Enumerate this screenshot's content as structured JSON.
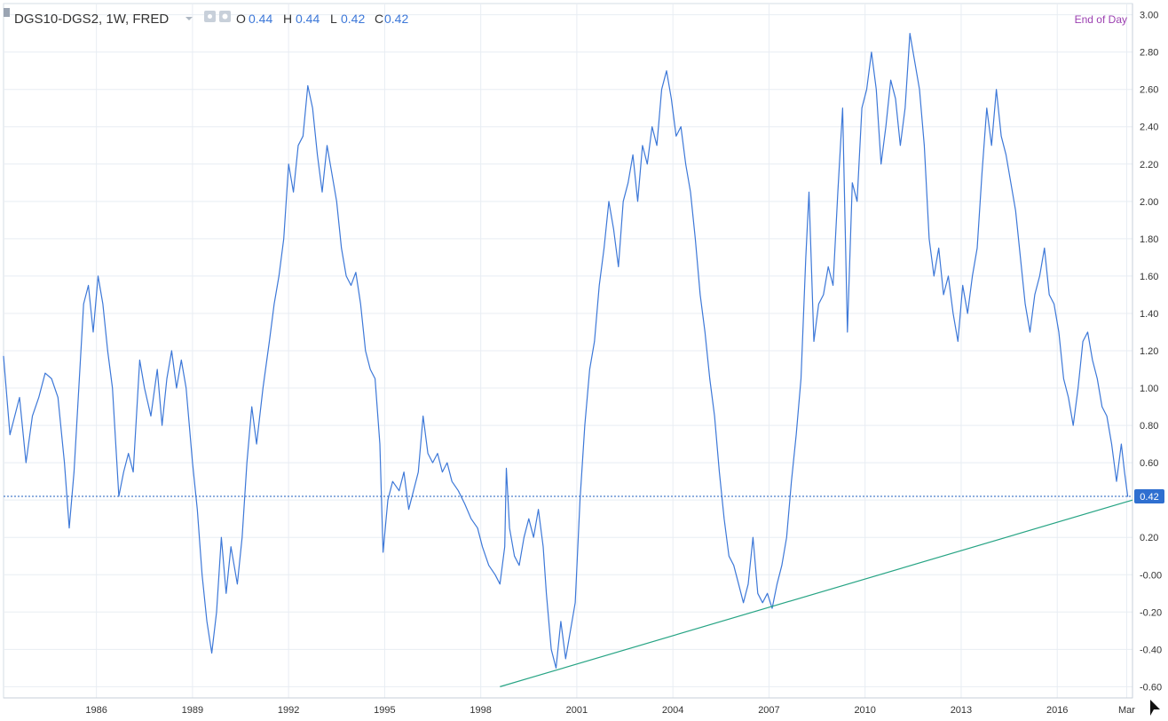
{
  "header": {
    "symbol_label": "DGS10-DGS2, 1W, FRED",
    "open_label": "O",
    "open_value": "0.44",
    "high_label": "H",
    "high_value": "0.44",
    "low_label": "L",
    "low_value": "0.42",
    "close_label": "C",
    "close_value": "0.42",
    "session_label": "End of Day"
  },
  "icons": {
    "collapse": "collapse-icon",
    "dropdown": "chevron-down-icon",
    "visibility": "eye-icon",
    "settings": "gear-icon",
    "cursor": "cursor-icon"
  },
  "colors": {
    "series": "#3d78d8",
    "trendline": "#27a484",
    "price_line": "#1f5fbf",
    "last_price_badge": "#2f6fd0",
    "session_text": "#9b3fb0",
    "grid": "#e8edf3",
    "axis_text": "#333333"
  },
  "chart_data": {
    "type": "line",
    "title": "DGS10-DGS2, 1W, FRED",
    "x_tick_labels": [
      "1986",
      "1989",
      "1992",
      "1995",
      "1998",
      "2001",
      "2004",
      "2007",
      "2010",
      "2013",
      "2016",
      "Mar"
    ],
    "x_ticks": [
      1986,
      1989,
      1992,
      1995,
      1998,
      2001,
      2004,
      2007,
      2010,
      2013,
      2016,
      2018.17
    ],
    "xlim": [
      1983.1,
      2018.35
    ],
    "y_tick_labels": [
      "3.00",
      "2.80",
      "2.60",
      "2.40",
      "2.20",
      "2.00",
      "1.80",
      "1.60",
      "1.40",
      "1.20",
      "1.00",
      "0.80",
      "0.60",
      "0.40",
      "0.20",
      "-0.00",
      "-0.20",
      "-0.40",
      "-0.60"
    ],
    "y_ticks": [
      3.0,
      2.8,
      2.6,
      2.4,
      2.2,
      2.0,
      1.8,
      1.6,
      1.4,
      1.2,
      1.0,
      0.8,
      0.6,
      0.4,
      0.2,
      0.0,
      -0.2,
      -0.4,
      -0.6
    ],
    "ylim": [
      -0.66,
      3.06
    ],
    "grid": true,
    "legend": "none",
    "last_value_label": "0.42",
    "last_value": 0.42,
    "series": [
      {
        "points": [
          [
            1983.1,
            1.17
          ],
          [
            1983.3,
            0.75
          ],
          [
            1983.6,
            0.95
          ],
          [
            1983.8,
            0.6
          ],
          [
            1984.0,
            0.85
          ],
          [
            1984.2,
            0.95
          ],
          [
            1984.4,
            1.08
          ],
          [
            1984.6,
            1.05
          ],
          [
            1984.8,
            0.95
          ],
          [
            1985.0,
            0.6
          ],
          [
            1985.15,
            0.25
          ],
          [
            1985.3,
            0.55
          ],
          [
            1985.45,
            1.0
          ],
          [
            1985.6,
            1.45
          ],
          [
            1985.75,
            1.55
          ],
          [
            1985.9,
            1.3
          ],
          [
            1986.05,
            1.6
          ],
          [
            1986.2,
            1.45
          ],
          [
            1986.35,
            1.2
          ],
          [
            1986.5,
            1.0
          ],
          [
            1986.7,
            0.42
          ],
          [
            1986.85,
            0.55
          ],
          [
            1987.0,
            0.65
          ],
          [
            1987.15,
            0.55
          ],
          [
            1987.35,
            1.15
          ],
          [
            1987.5,
            1.0
          ],
          [
            1987.7,
            0.85
          ],
          [
            1987.9,
            1.1
          ],
          [
            1988.05,
            0.8
          ],
          [
            1988.2,
            1.05
          ],
          [
            1988.35,
            1.2
          ],
          [
            1988.5,
            1.0
          ],
          [
            1988.65,
            1.15
          ],
          [
            1988.8,
            1.0
          ],
          [
            1989.0,
            0.6
          ],
          [
            1989.15,
            0.35
          ],
          [
            1989.3,
            0.0
          ],
          [
            1989.45,
            -0.25
          ],
          [
            1989.6,
            -0.42
          ],
          [
            1989.75,
            -0.2
          ],
          [
            1989.9,
            0.2
          ],
          [
            1990.05,
            -0.1
          ],
          [
            1990.2,
            0.15
          ],
          [
            1990.4,
            -0.05
          ],
          [
            1990.55,
            0.2
          ],
          [
            1990.7,
            0.6
          ],
          [
            1990.85,
            0.9
          ],
          [
            1991.0,
            0.7
          ],
          [
            1991.2,
            1.0
          ],
          [
            1991.4,
            1.25
          ],
          [
            1991.55,
            1.45
          ],
          [
            1991.7,
            1.6
          ],
          [
            1991.85,
            1.8
          ],
          [
            1992.0,
            2.2
          ],
          [
            1992.15,
            2.05
          ],
          [
            1992.3,
            2.3
          ],
          [
            1992.45,
            2.35
          ],
          [
            1992.6,
            2.62
          ],
          [
            1992.75,
            2.5
          ],
          [
            1992.9,
            2.25
          ],
          [
            1993.05,
            2.05
          ],
          [
            1993.2,
            2.3
          ],
          [
            1993.35,
            2.15
          ],
          [
            1993.5,
            2.0
          ],
          [
            1993.65,
            1.75
          ],
          [
            1993.8,
            1.6
          ],
          [
            1993.95,
            1.55
          ],
          [
            1994.1,
            1.62
          ],
          [
            1994.25,
            1.45
          ],
          [
            1994.4,
            1.2
          ],
          [
            1994.55,
            1.1
          ],
          [
            1994.7,
            1.05
          ],
          [
            1994.85,
            0.7
          ],
          [
            1994.95,
            0.12
          ],
          [
            1995.1,
            0.4
          ],
          [
            1995.25,
            0.5
          ],
          [
            1995.45,
            0.45
          ],
          [
            1995.6,
            0.55
          ],
          [
            1995.75,
            0.35
          ],
          [
            1995.9,
            0.45
          ],
          [
            1996.05,
            0.55
          ],
          [
            1996.2,
            0.85
          ],
          [
            1996.35,
            0.65
          ],
          [
            1996.5,
            0.6
          ],
          [
            1996.65,
            0.65
          ],
          [
            1996.8,
            0.55
          ],
          [
            1996.95,
            0.6
          ],
          [
            1997.1,
            0.5
          ],
          [
            1997.3,
            0.45
          ],
          [
            1997.5,
            0.38
          ],
          [
            1997.7,
            0.3
          ],
          [
            1997.9,
            0.25
          ],
          [
            1998.05,
            0.15
          ],
          [
            1998.25,
            0.05
          ],
          [
            1998.45,
            0.0
          ],
          [
            1998.6,
            -0.05
          ],
          [
            1998.75,
            0.15
          ],
          [
            1998.8,
            0.57
          ],
          [
            1998.9,
            0.25
          ],
          [
            1999.05,
            0.1
          ],
          [
            1999.2,
            0.05
          ],
          [
            1999.35,
            0.2
          ],
          [
            1999.5,
            0.3
          ],
          [
            1999.65,
            0.2
          ],
          [
            1999.8,
            0.35
          ],
          [
            1999.95,
            0.15
          ],
          [
            2000.05,
            -0.1
          ],
          [
            2000.2,
            -0.4
          ],
          [
            2000.35,
            -0.5
          ],
          [
            2000.5,
            -0.25
          ],
          [
            2000.65,
            -0.45
          ],
          [
            2000.8,
            -0.3
          ],
          [
            2000.95,
            -0.15
          ],
          [
            2001.1,
            0.4
          ],
          [
            2001.25,
            0.8
          ],
          [
            2001.4,
            1.1
          ],
          [
            2001.55,
            1.25
          ],
          [
            2001.7,
            1.55
          ],
          [
            2001.85,
            1.75
          ],
          [
            2002.0,
            2.0
          ],
          [
            2002.15,
            1.85
          ],
          [
            2002.3,
            1.65
          ],
          [
            2002.45,
            2.0
          ],
          [
            2002.6,
            2.1
          ],
          [
            2002.75,
            2.25
          ],
          [
            2002.9,
            2.0
          ],
          [
            2003.05,
            2.3
          ],
          [
            2003.2,
            2.2
          ],
          [
            2003.35,
            2.4
          ],
          [
            2003.5,
            2.3
          ],
          [
            2003.65,
            2.6
          ],
          [
            2003.8,
            2.7
          ],
          [
            2003.95,
            2.55
          ],
          [
            2004.1,
            2.35
          ],
          [
            2004.25,
            2.4
          ],
          [
            2004.4,
            2.2
          ],
          [
            2004.55,
            2.05
          ],
          [
            2004.7,
            1.8
          ],
          [
            2004.85,
            1.5
          ],
          [
            2005.0,
            1.3
          ],
          [
            2005.15,
            1.05
          ],
          [
            2005.3,
            0.85
          ],
          [
            2005.45,
            0.55
          ],
          [
            2005.6,
            0.3
          ],
          [
            2005.75,
            0.1
          ],
          [
            2005.9,
            0.05
          ],
          [
            2006.05,
            -0.05
          ],
          [
            2006.2,
            -0.15
          ],
          [
            2006.35,
            -0.05
          ],
          [
            2006.5,
            0.2
          ],
          [
            2006.65,
            -0.1
          ],
          [
            2006.8,
            -0.15
          ],
          [
            2006.95,
            -0.1
          ],
          [
            2007.1,
            -0.18
          ],
          [
            2007.25,
            -0.05
          ],
          [
            2007.4,
            0.05
          ],
          [
            2007.55,
            0.2
          ],
          [
            2007.7,
            0.5
          ],
          [
            2007.85,
            0.75
          ],
          [
            2008.0,
            1.05
          ],
          [
            2008.15,
            1.7
          ],
          [
            2008.25,
            2.05
          ],
          [
            2008.4,
            1.25
          ],
          [
            2008.55,
            1.45
          ],
          [
            2008.7,
            1.5
          ],
          [
            2008.85,
            1.65
          ],
          [
            2009.0,
            1.55
          ],
          [
            2009.15,
            2.05
          ],
          [
            2009.3,
            2.5
          ],
          [
            2009.45,
            1.3
          ],
          [
            2009.6,
            2.1
          ],
          [
            2009.75,
            2.0
          ],
          [
            2009.9,
            2.5
          ],
          [
            2010.05,
            2.6
          ],
          [
            2010.2,
            2.8
          ],
          [
            2010.35,
            2.6
          ],
          [
            2010.5,
            2.2
          ],
          [
            2010.65,
            2.4
          ],
          [
            2010.8,
            2.65
          ],
          [
            2010.95,
            2.55
          ],
          [
            2011.1,
            2.3
          ],
          [
            2011.25,
            2.5
          ],
          [
            2011.4,
            2.9
          ],
          [
            2011.55,
            2.75
          ],
          [
            2011.7,
            2.6
          ],
          [
            2011.85,
            2.3
          ],
          [
            2012.0,
            1.8
          ],
          [
            2012.15,
            1.6
          ],
          [
            2012.3,
            1.75
          ],
          [
            2012.45,
            1.5
          ],
          [
            2012.6,
            1.6
          ],
          [
            2012.75,
            1.4
          ],
          [
            2012.9,
            1.25
          ],
          [
            2013.05,
            1.55
          ],
          [
            2013.2,
            1.4
          ],
          [
            2013.35,
            1.6
          ],
          [
            2013.5,
            1.75
          ],
          [
            2013.65,
            2.15
          ],
          [
            2013.8,
            2.5
          ],
          [
            2013.95,
            2.3
          ],
          [
            2014.1,
            2.6
          ],
          [
            2014.25,
            2.35
          ],
          [
            2014.4,
            2.25
          ],
          [
            2014.55,
            2.1
          ],
          [
            2014.7,
            1.95
          ],
          [
            2014.85,
            1.7
          ],
          [
            2015.0,
            1.45
          ],
          [
            2015.15,
            1.3
          ],
          [
            2015.3,
            1.5
          ],
          [
            2015.45,
            1.6
          ],
          [
            2015.6,
            1.75
          ],
          [
            2015.75,
            1.5
          ],
          [
            2015.9,
            1.45
          ],
          [
            2016.05,
            1.3
          ],
          [
            2016.2,
            1.05
          ],
          [
            2016.35,
            0.95
          ],
          [
            2016.5,
            0.8
          ],
          [
            2016.65,
            1.0
          ],
          [
            2016.8,
            1.25
          ],
          [
            2016.95,
            1.3
          ],
          [
            2017.1,
            1.15
          ],
          [
            2017.25,
            1.05
          ],
          [
            2017.4,
            0.9
          ],
          [
            2017.55,
            0.85
          ],
          [
            2017.7,
            0.7
          ],
          [
            2017.85,
            0.5
          ],
          [
            2018.0,
            0.7
          ],
          [
            2018.1,
            0.55
          ],
          [
            2018.2,
            0.42
          ]
        ]
      }
    ],
    "annotations": [
      {
        "type": "trendline",
        "x": [
          1998.6,
          2018.35
        ],
        "y": [
          -0.6,
          0.4
        ]
      },
      {
        "type": "horizontal_price_line",
        "y": 0.42
      }
    ]
  }
}
